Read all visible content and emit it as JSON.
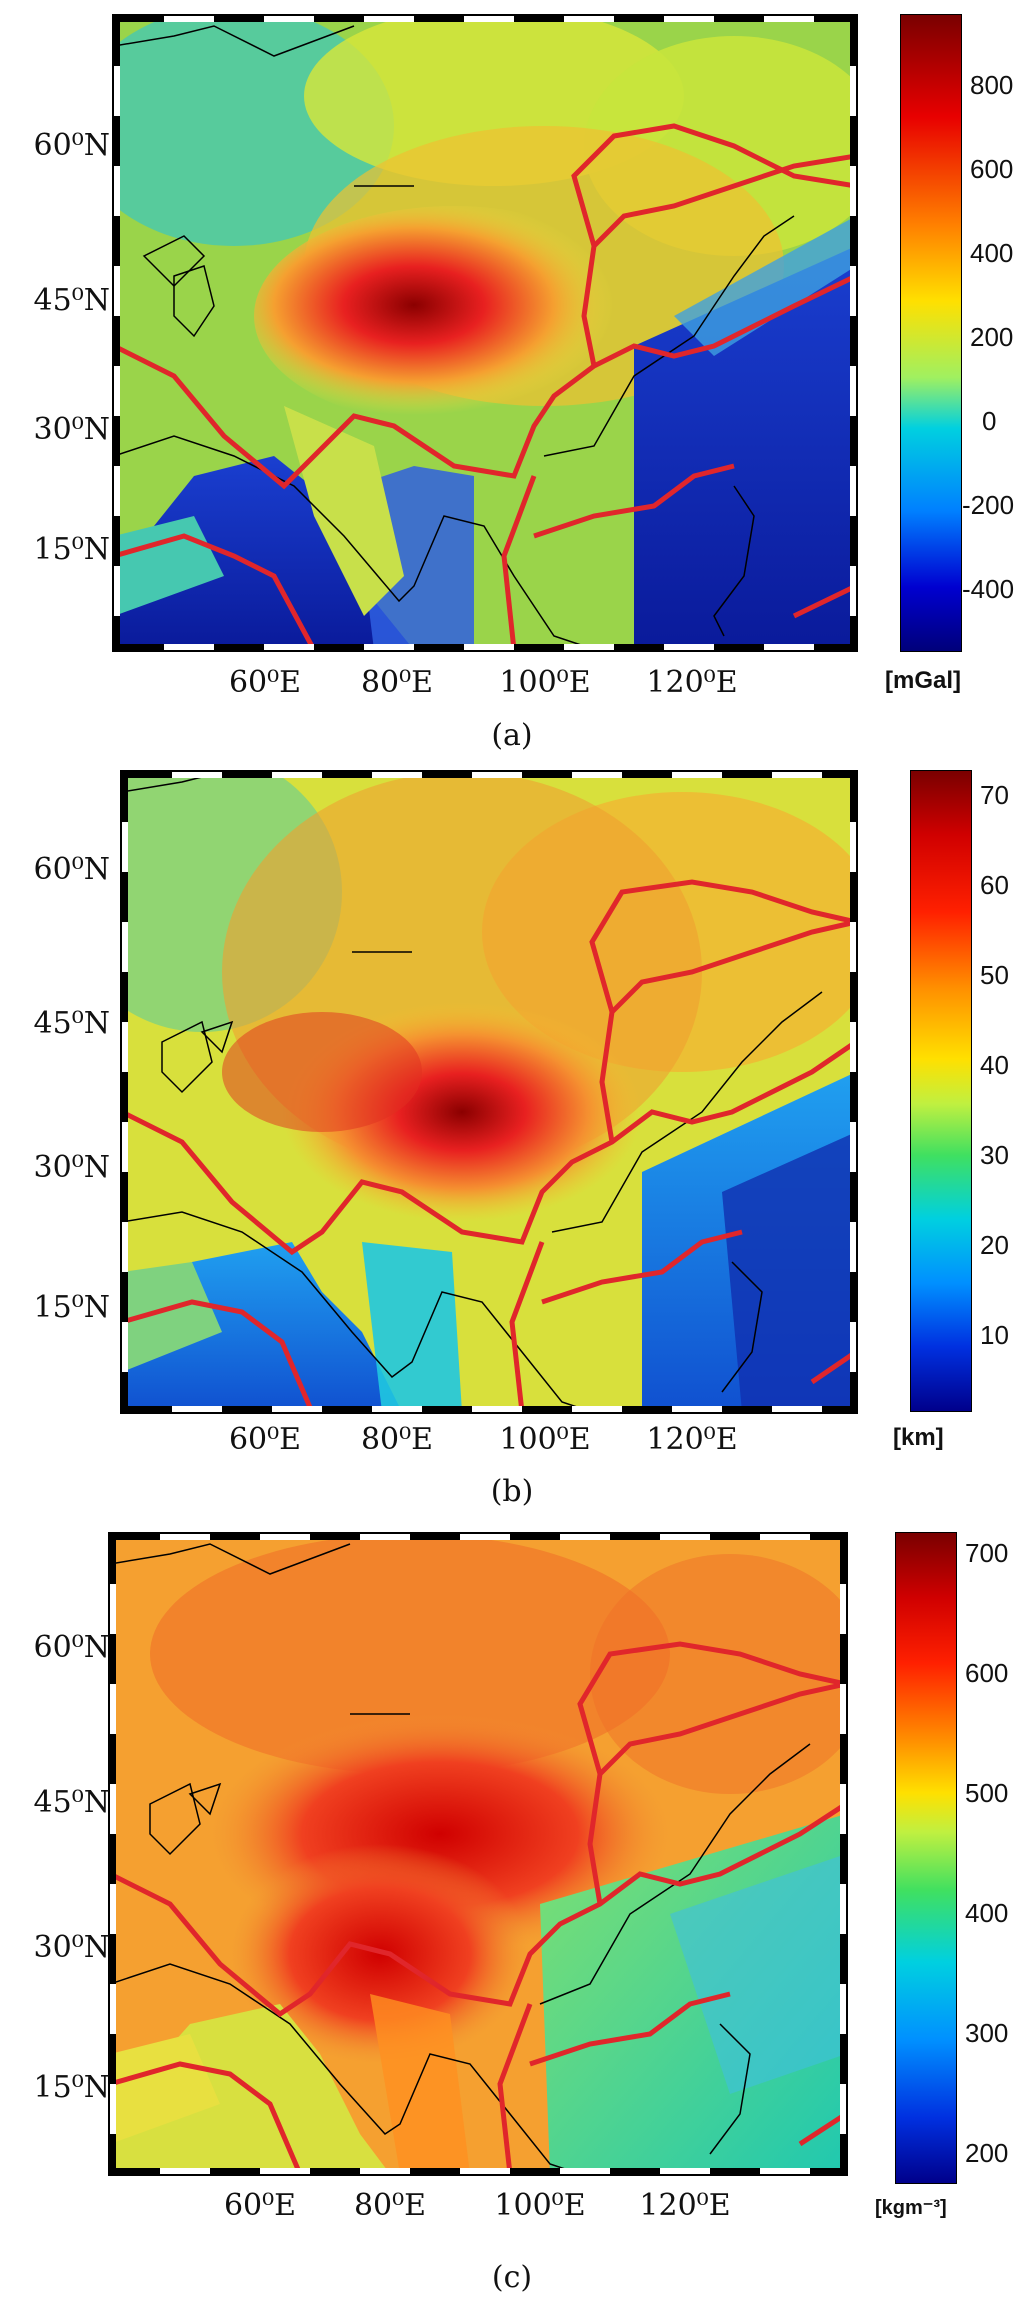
{
  "panels": [
    {
      "caption": "(a)",
      "unit": "[mGal]",
      "lat_labels": [
        "60⁰N",
        "45⁰N",
        "30⁰N",
        "15⁰N"
      ],
      "lon_labels": [
        "60⁰E",
        "80⁰E",
        "100⁰E",
        "120⁰E"
      ],
      "cbar_ticks": [
        "800",
        "600",
        "400",
        "200",
        "0",
        "-200",
        "-400"
      ]
    },
    {
      "caption": "(b)",
      "unit": "[km]",
      "lat_labels": [
        "60⁰N",
        "45⁰N",
        "30⁰N",
        "15⁰N"
      ],
      "lon_labels": [
        "60⁰E",
        "80⁰E",
        "100⁰E",
        "120⁰E"
      ],
      "cbar_ticks": [
        "70",
        "60",
        "50",
        "40",
        "30",
        "20",
        "10"
      ]
    },
    {
      "caption": "(c)",
      "unit": "[kgm⁻³]",
      "lat_labels": [
        "60⁰N",
        "45⁰N",
        "30⁰N",
        "15⁰N"
      ],
      "lon_labels": [
        "60⁰E",
        "80⁰E",
        "100⁰E",
        "120⁰E"
      ],
      "cbar_ticks": [
        "700",
        "600",
        "500",
        "400",
        "300",
        "200"
      ]
    }
  ],
  "colors": {
    "plate_boundary": "#e0262b",
    "coastline": "#000000",
    "colormap": [
      "#8b0000",
      "#ff0000",
      "#ffa500",
      "#ffff00",
      "#7fff7f",
      "#00bfff",
      "#0000cd",
      "#00008b"
    ]
  }
}
